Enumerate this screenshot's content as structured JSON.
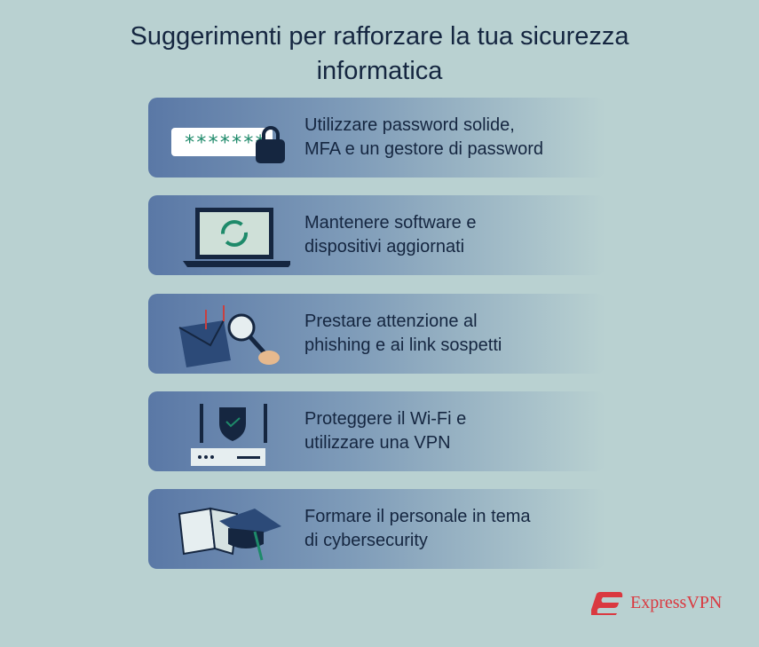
{
  "title": {
    "line1": "Suggerimenti per rafforzare la tua sicurezza",
    "line2": "informatica"
  },
  "tips": [
    {
      "line1": "Utilizzare password solide,",
      "line2": "MFA e un gestore di password",
      "icon": "password-lock-icon"
    },
    {
      "line1": "Mantenere software e",
      "line2": "dispositivi aggiornati",
      "icon": "laptop-update-icon"
    },
    {
      "line1": "Prestare attenzione al",
      "line2": "phishing e ai link sospetti",
      "icon": "phishing-magnifier-icon"
    },
    {
      "line1": "Proteggere il Wi-Fi e",
      "line2": "utilizzare una VPN",
      "icon": "router-shield-icon"
    },
    {
      "line1": "Formare il personale in tema",
      "line2": "di cybersecurity",
      "icon": "book-graduation-cap-icon"
    }
  ],
  "password_mask": "*******",
  "brand": {
    "name": "ExpressVPN",
    "color": "#da3940"
  },
  "colors": {
    "background": "#b9d1d1",
    "card": "#5a78a6",
    "text": "#152640",
    "accent": "#1e8a6a"
  }
}
